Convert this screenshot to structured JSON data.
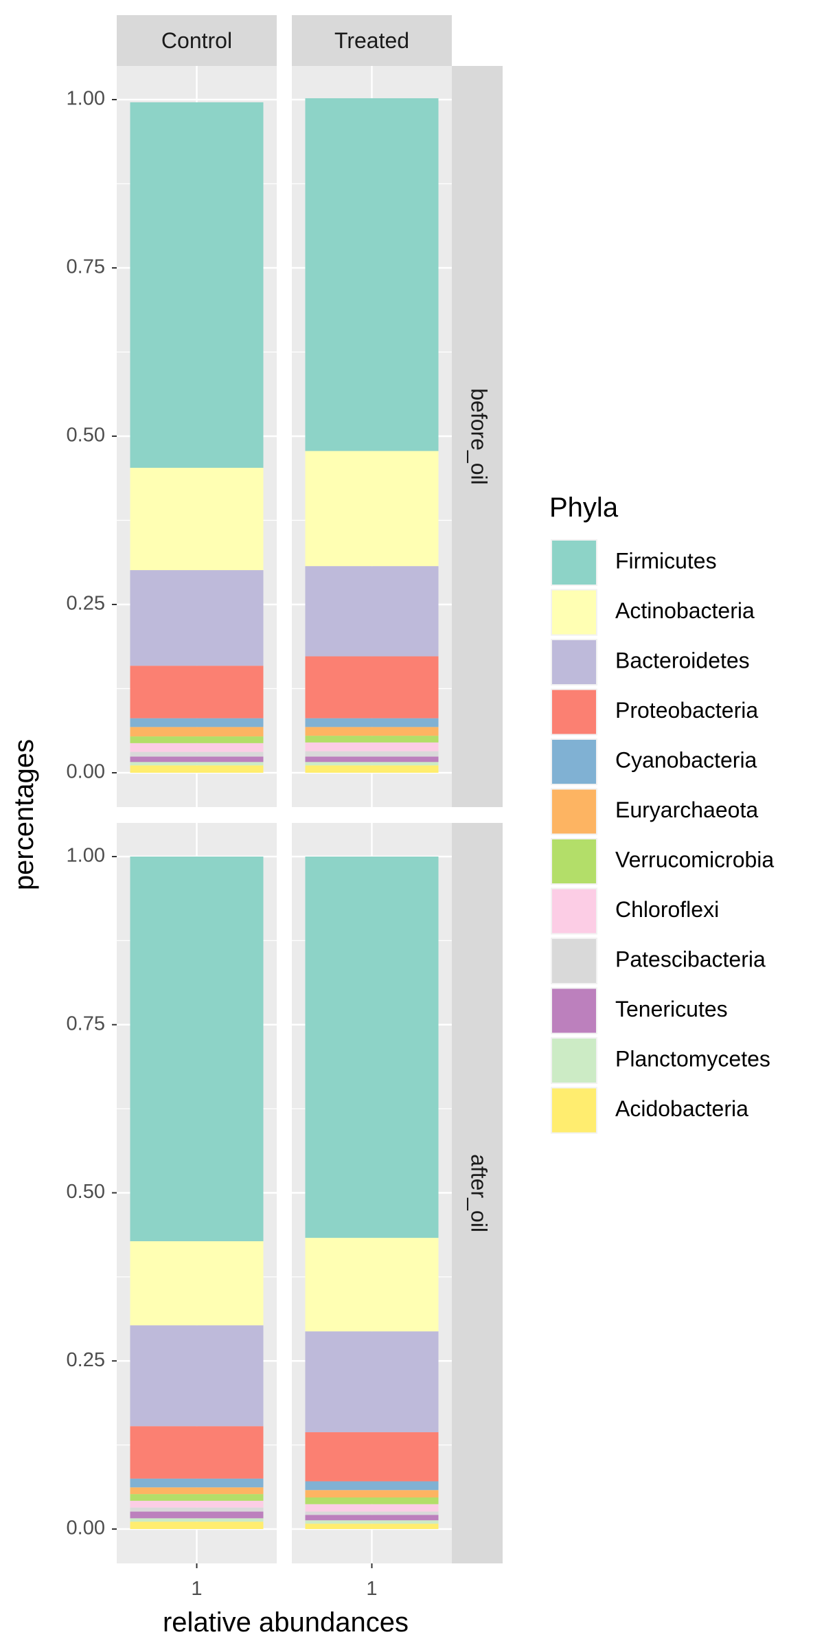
{
  "chart_data": {
    "type": "bar",
    "stacked": true,
    "facet_rows": [
      "before_oil",
      "after_oil"
    ],
    "facet_cols": [
      "Control",
      "Treated"
    ],
    "categories": [
      "1"
    ],
    "xlabel": "relative abundances",
    "ylabel": "percentages",
    "ylim": [
      0,
      1
    ],
    "yticks": [
      "0.00",
      "0.25",
      "0.50",
      "0.75",
      "1.00"
    ],
    "ytick_values": [
      0,
      0.25,
      0.5,
      0.75,
      1
    ],
    "grid": true,
    "legend": {
      "title": "Phyla",
      "position": "right"
    },
    "series": [
      {
        "name": "Acidobacteria",
        "color": "#FFED6F"
      },
      {
        "name": "Planctomycetes",
        "color": "#CCEBC5"
      },
      {
        "name": "Tenericutes",
        "color": "#BC80BD"
      },
      {
        "name": "Patescibacteria",
        "color": "#D9D9D9"
      },
      {
        "name": "Chloroflexi",
        "color": "#FCCDE5"
      },
      {
        "name": "Verrucomicrobia",
        "color": "#B3DE69"
      },
      {
        "name": "Euryarchaeota",
        "color": "#FDB462"
      },
      {
        "name": "Cyanobacteria",
        "color": "#80B1D3"
      },
      {
        "name": "Proteobacteria",
        "color": "#FB8072"
      },
      {
        "name": "Bacteroidetes",
        "color": "#BEBADA"
      },
      {
        "name": "Actinobacteria",
        "color": "#FFFFB3"
      },
      {
        "name": "Firmicutes",
        "color": "#8DD3C7"
      }
    ],
    "legend_order": [
      "Firmicutes",
      "Actinobacteria",
      "Bacteroidetes",
      "Proteobacteria",
      "Cyanobacteria",
      "Euryarchaeota",
      "Verrucomicrobia",
      "Chloroflexi",
      "Patescibacteria",
      "Tenericutes",
      "Planctomycetes",
      "Acidobacteria"
    ],
    "panels": [
      {
        "row": "before_oil",
        "col": "Control",
        "values": [
          0.011,
          0.005,
          0.008,
          0.007,
          0.013,
          0.01,
          0.014,
          0.013,
          0.078,
          0.142,
          0.152,
          0.543
        ]
      },
      {
        "row": "before_oil",
        "col": "Treated",
        "values": [
          0.011,
          0.005,
          0.008,
          0.008,
          0.013,
          0.01,
          0.013,
          0.013,
          0.092,
          0.134,
          0.171,
          0.524
        ]
      },
      {
        "row": "after_oil",
        "col": "Control",
        "values": [
          0.011,
          0.005,
          0.01,
          0.006,
          0.01,
          0.01,
          0.01,
          0.013,
          0.078,
          0.15,
          0.125,
          0.572
        ]
      },
      {
        "row": "after_oil",
        "col": "Treated",
        "values": [
          0.008,
          0.005,
          0.008,
          0.005,
          0.011,
          0.01,
          0.011,
          0.013,
          0.073,
          0.15,
          0.139,
          0.567
        ]
      }
    ]
  }
}
